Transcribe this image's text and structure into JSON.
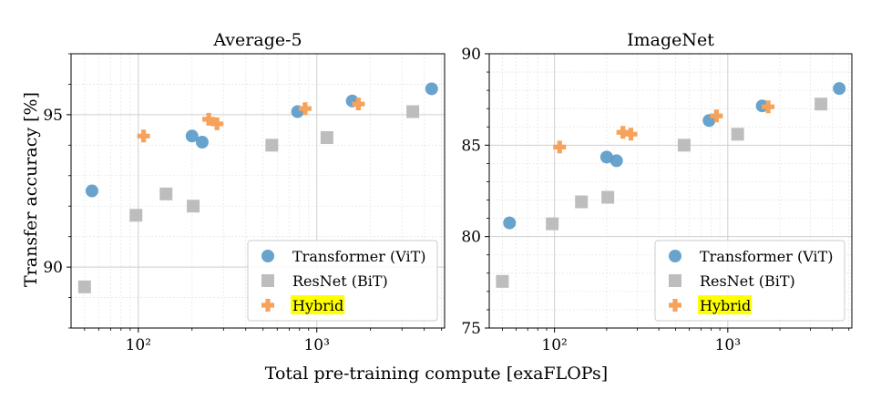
{
  "figure": {
    "xlabel": "Total pre-training compute [exaFLOPs]",
    "ylabel": "Transfer accuracy [%]"
  },
  "chart_data": [
    {
      "type": "scatter",
      "title": "Average-5",
      "xscale": "log",
      "xlim": [
        42,
        5200
      ],
      "ylim": [
        88,
        97
      ],
      "xticks": [
        100,
        1000
      ],
      "xtick_labels": [
        "10²",
        "10³"
      ],
      "yticks": [
        90,
        95
      ],
      "ytick_labels": [
        "90",
        "95"
      ],
      "grid": true,
      "legend": "bottom-right",
      "series": [
        {
          "name": "Transformer (ViT)",
          "marker": "circle",
          "color": "#5b9bc9",
          "x": [
            55,
            200,
            228,
            780,
            1580,
            4400
          ],
          "y": [
            92.5,
            94.3,
            94.1,
            95.1,
            95.45,
            95.85
          ]
        },
        {
          "name": "ResNet (BiT)",
          "marker": "square",
          "color": "#bdbdbd",
          "x": [
            50,
            97,
            143,
            203,
            560,
            1140,
            3450
          ],
          "y": [
            89.35,
            91.7,
            92.4,
            92.0,
            94.0,
            94.25,
            95.1
          ]
        },
        {
          "name": "Hybrid",
          "marker": "plus",
          "color": "#f5a25a",
          "highlight": "#ffff00",
          "x": [
            107,
            248,
            276,
            860,
            1710
          ],
          "y": [
            94.3,
            94.85,
            94.7,
            95.2,
            95.35
          ]
        }
      ]
    },
    {
      "type": "scatter",
      "title": "ImageNet",
      "xscale": "log",
      "xlim": [
        42,
        5200
      ],
      "ylim": [
        75,
        90
      ],
      "xticks": [
        100,
        1000
      ],
      "xtick_labels": [
        "10²",
        "10³"
      ],
      "yticks": [
        75,
        80,
        85,
        90
      ],
      "ytick_labels": [
        "75",
        "80",
        "85",
        "90"
      ],
      "grid": true,
      "legend": "bottom-right",
      "series": [
        {
          "name": "Transformer (ViT)",
          "marker": "circle",
          "color": "#5b9bc9",
          "x": [
            55,
            200,
            228,
            780,
            1580,
            4400
          ],
          "y": [
            80.75,
            84.35,
            84.15,
            86.35,
            87.15,
            88.1
          ]
        },
        {
          "name": "ResNet (BiT)",
          "marker": "square",
          "color": "#bdbdbd",
          "x": [
            50,
            97,
            143,
            203,
            560,
            1140,
            3450
          ],
          "y": [
            77.55,
            80.7,
            81.9,
            82.15,
            85.0,
            85.6,
            87.25
          ]
        },
        {
          "name": "Hybrid",
          "marker": "plus",
          "color": "#f5a25a",
          "highlight": "#ffff00",
          "x": [
            107,
            248,
            276,
            860,
            1710
          ],
          "y": [
            84.9,
            85.7,
            85.6,
            86.6,
            87.1
          ]
        }
      ]
    }
  ]
}
